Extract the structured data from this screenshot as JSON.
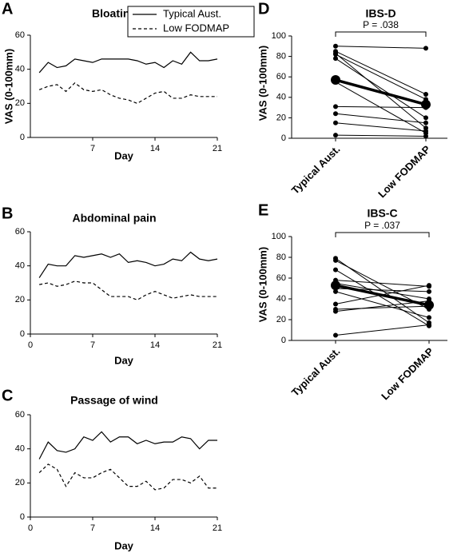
{
  "chart_data": [
    {
      "type": "line",
      "panel_label": "A",
      "title": "Bloating",
      "x_label": "Day",
      "y_label": "VAS (0-100mm)",
      "x": [
        1,
        2,
        3,
        4,
        5,
        6,
        7,
        8,
        9,
        10,
        11,
        12,
        13,
        14,
        15,
        16,
        17,
        18,
        19,
        20,
        21
      ],
      "series": [
        {
          "name": "Typical Aust.",
          "color": "#000000",
          "dash": false,
          "values": [
            38,
            44,
            41,
            42,
            46,
            45,
            44,
            46,
            46,
            46,
            46,
            45,
            43,
            44,
            41,
            45,
            43,
            50,
            45,
            45,
            46
          ]
        },
        {
          "name": "Low FODMAP",
          "color": "#000000",
          "dash": true,
          "values": [
            28,
            30,
            31,
            27,
            32,
            28,
            27,
            28,
            25,
            23,
            22,
            20,
            23,
            26,
            27,
            23,
            23,
            25,
            24,
            24,
            24
          ]
        }
      ],
      "xlim": [
        0,
        21
      ],
      "xticks": [
        7,
        14,
        21
      ],
      "ylim": [
        0,
        60
      ],
      "yticks": [
        0,
        20,
        40,
        60
      ],
      "legend": "top-right"
    },
    {
      "type": "line",
      "panel_label": "B",
      "title": "Abdominal pain",
      "x_label": "Day",
      "x": [
        1,
        2,
        3,
        4,
        5,
        6,
        7,
        8,
        9,
        10,
        11,
        12,
        13,
        14,
        15,
        16,
        17,
        18,
        19,
        20,
        21
      ],
      "series": [
        {
          "color": "#000000",
          "dash": false,
          "values": [
            33,
            41,
            40,
            40,
            46,
            45,
            46,
            47,
            45,
            47,
            42,
            43,
            42,
            40,
            41,
            44,
            43,
            48,
            44,
            43,
            44
          ]
        },
        {
          "color": "#000000",
          "dash": true,
          "values": [
            29,
            30,
            28,
            29,
            31,
            30,
            30,
            26,
            22,
            22,
            22,
            20,
            23,
            25,
            23,
            21,
            22,
            23,
            22,
            22,
            22
          ]
        }
      ],
      "xlim": [
        0,
        21
      ],
      "xticks": [
        0,
        7,
        14,
        21
      ],
      "ylim": [
        0,
        60
      ],
      "yticks": [
        0,
        20,
        40,
        60
      ]
    },
    {
      "type": "line",
      "panel_label": "C",
      "title": "Passage of wind",
      "x_label": "Day",
      "x": [
        1,
        2,
        3,
        4,
        5,
        6,
        7,
        8,
        9,
        10,
        11,
        12,
        13,
        14,
        15,
        16,
        17,
        18,
        19,
        20,
        21
      ],
      "series": [
        {
          "color": "#000000",
          "dash": false,
          "values": [
            34,
            44,
            39,
            38,
            40,
            47,
            45,
            50,
            44,
            47,
            47,
            43,
            45,
            43,
            44,
            44,
            47,
            46,
            40,
            45,
            45
          ]
        },
        {
          "color": "#000000",
          "dash": true,
          "values": [
            26,
            31,
            28,
            18,
            26,
            23,
            23,
            26,
            28,
            23,
            18,
            18,
            21,
            16,
            17,
            22,
            22,
            20,
            24,
            17,
            17
          ]
        }
      ],
      "xlim": [
        0,
        21
      ],
      "xticks": [
        0,
        7,
        14,
        21
      ],
      "ylim": [
        0,
        60
      ],
      "yticks": [
        0,
        20,
        40,
        60
      ]
    },
    {
      "type": "paired",
      "panel_label": "D",
      "title": "IBS-D",
      "annotation": "P = .038",
      "y_label": "VAS (0-100mm)",
      "categories": [
        "Typical Aust.",
        "Low FODMAP"
      ],
      "series": [
        {
          "values": [
            90,
            88
          ]
        },
        {
          "values": [
            85,
            43
          ]
        },
        {
          "values": [
            83,
            10
          ]
        },
        {
          "values": [
            82,
            38
          ]
        },
        {
          "values": [
            78,
            20
          ]
        },
        {
          "values": [
            55,
            5
          ]
        },
        {
          "values": [
            31,
            30
          ]
        },
        {
          "values": [
            24,
            15
          ]
        },
        {
          "values": [
            15,
            7
          ]
        },
        {
          "values": [
            3,
            2
          ]
        }
      ],
      "mean": {
        "values": [
          57,
          33
        ]
      },
      "ylim": [
        0,
        100
      ],
      "yticks": [
        0,
        20,
        40,
        60,
        80,
        100
      ]
    },
    {
      "type": "paired",
      "panel_label": "E",
      "title": "IBS-C",
      "annotation": "P = .037",
      "y_label": "VAS (0-100mm)",
      "categories": [
        "Typical Aust.",
        "Low FODMAP"
      ],
      "series": [
        {
          "values": [
            79,
            17
          ]
        },
        {
          "values": [
            77,
            30
          ]
        },
        {
          "values": [
            68,
            14
          ]
        },
        {
          "values": [
            58,
            52
          ]
        },
        {
          "values": [
            55,
            40
          ]
        },
        {
          "values": [
            52,
            35
          ]
        },
        {
          "values": [
            50,
            47
          ]
        },
        {
          "values": [
            47,
            22
          ]
        },
        {
          "values": [
            35,
            53
          ]
        },
        {
          "values": [
            30,
            33
          ]
        },
        {
          "values": [
            28,
            38
          ]
        },
        {
          "values": [
            5,
            15
          ]
        }
      ],
      "mean": {
        "values": [
          53,
          34
        ]
      },
      "ylim": [
        0,
        100
      ],
      "yticks": [
        0,
        20,
        40,
        60,
        80,
        100
      ]
    }
  ]
}
